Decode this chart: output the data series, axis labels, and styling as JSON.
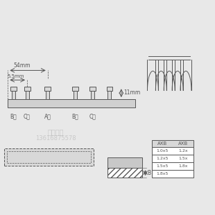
{
  "bg_color": "#e8e8e8",
  "white": "#ffffff",
  "dark": "#555555",
  "line_color": "#555555",
  "hatch_color": "#888888",
  "text_color": "#555555",
  "phone_text": "13616875578",
  "watermark_text": "凯特电气",
  "dim_54": "54mm",
  "dim_55": "5.5mm",
  "dim_11": "11mm",
  "labels": [
    "B相",
    "C相",
    "A相",
    "B相",
    "C相"
  ],
  "table_headers": [
    "AXB",
    "AXB"
  ],
  "table_col1": [
    "1.0x5",
    "1.2x5",
    "1.5x5",
    "1.8x5"
  ],
  "table_col2": [
    "1.2x",
    "1.5x",
    "1.8x"
  ],
  "dim_B": "B",
  "label_fontsize": 5.5,
  "dim_fontsize": 5.5
}
